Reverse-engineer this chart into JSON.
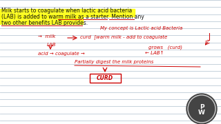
{
  "bg_color": "#ffffff",
  "line_color": "#aabccc",
  "title_lines": [
    "Milk starts to coagulate when lactic acid bacteria",
    "(LAB) is added to warm milk as a starter. Mention any",
    "two other benefits LAB provides."
  ],
  "highlight_color": "#ffff00",
  "highlight_alpha": 0.85,
  "red_color": "#cc0000",
  "black_color": "#111111",
  "title_fontsize": 5.5,
  "note_fontsize": 5.0,
  "pw_bg": "#555555",
  "pw_ring": "#cccccc"
}
